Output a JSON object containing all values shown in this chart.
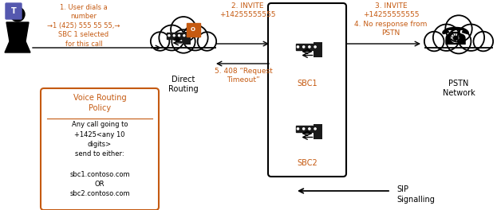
{
  "bg_color": "#ffffff",
  "orange": "#c55a11",
  "black": "#000000",
  "fig_w": 6.23,
  "fig_h": 2.64,
  "dpi": 100,
  "step1_text": "1. User dials a\nnumber\n→1 (425) 555 55 55,→\nSBC 1 selected\nfor this call",
  "step2_text": "2. INVITE\n+14255555555",
  "step3_text": "3. INVITE\n+14255555555\n4. No response from\nPSTN",
  "step5_text": "5. 408 “Request\nTimeout”",
  "sip_text": "SIP\nSignalling",
  "vrp_title": "Voice Routing\nPolicy",
  "vrp_body": "Any call going to\n+1425<any 10\ndigits>\nsend to either:\n\nsbc1.contoso.com\nOR\nsbc2.contoso.com",
  "dr_label": "Direct\nRouting",
  "pstn_label": "PSTN\nNetwork",
  "sbc1_label": "SBC1",
  "sbc2_label": "SBC2"
}
